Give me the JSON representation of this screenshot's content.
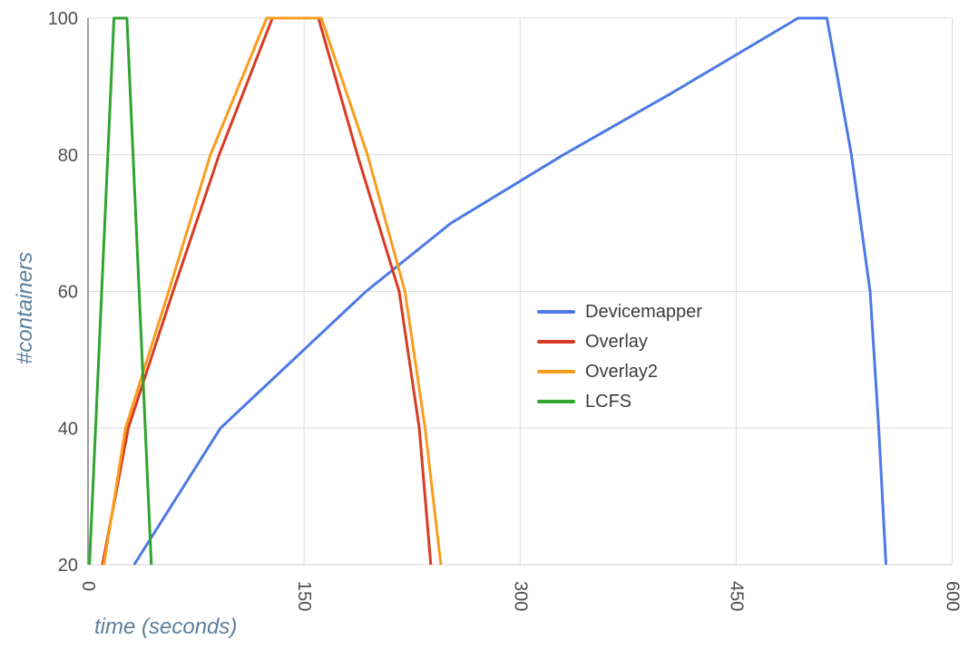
{
  "chart_data": {
    "type": "line",
    "title": "",
    "xlabel": "time (seconds)",
    "ylabel": "#containers",
    "x_range": [
      0,
      600
    ],
    "y_range": [
      20,
      100
    ],
    "x_ticks": [
      0,
      150,
      300,
      450,
      600
    ],
    "y_ticks": [
      20,
      40,
      60,
      80,
      100
    ],
    "grid": true,
    "legend_position": "inside-center-right",
    "series": [
      {
        "name": "Devicemapper",
        "color": "#4c79e6",
        "points": [
          [
            32,
            20
          ],
          [
            92,
            40
          ],
          [
            193,
            60
          ],
          [
            252,
            70
          ],
          [
            330,
            80
          ],
          [
            405,
            89
          ],
          [
            493,
            100
          ],
          [
            513,
            100
          ],
          [
            530,
            80
          ],
          [
            543,
            60
          ],
          [
            549,
            40
          ],
          [
            554,
            20
          ]
        ]
      },
      {
        "name": "Overlay",
        "color": "#d83b23",
        "points": [
          [
            10,
            20
          ],
          [
            28,
            40
          ],
          [
            59,
            60
          ],
          [
            91,
            80
          ],
          [
            128,
            100
          ],
          [
            160,
            100
          ],
          [
            187,
            80
          ],
          [
            216,
            60
          ],
          [
            230,
            40
          ],
          [
            238,
            20
          ]
        ]
      },
      {
        "name": "Overlay2",
        "color": "#f99d1c",
        "points": [
          [
            11,
            20
          ],
          [
            26,
            40
          ],
          [
            56,
            60
          ],
          [
            85,
            80
          ],
          [
            124,
            100
          ],
          [
            162,
            100
          ],
          [
            194,
            80
          ],
          [
            220,
            60
          ],
          [
            234,
            40
          ],
          [
            245,
            20
          ]
        ]
      },
      {
        "name": "LCFS",
        "color": "#2fa42e",
        "points": [
          [
            1,
            20
          ],
          [
            18,
            100
          ],
          [
            27,
            100
          ],
          [
            44,
            20
          ]
        ]
      }
    ]
  },
  "style": {
    "background": "#ffffff",
    "gridline_color": "#dcdcdc",
    "baseline_color": "#d2d2d2",
    "y_axis_line_color": "#9b9b9b",
    "tick_label_color": "#4d4d4d",
    "axis_title_color": "#5c7d99",
    "legend_text_color": "#3c3c3c",
    "line_width": 3
  }
}
